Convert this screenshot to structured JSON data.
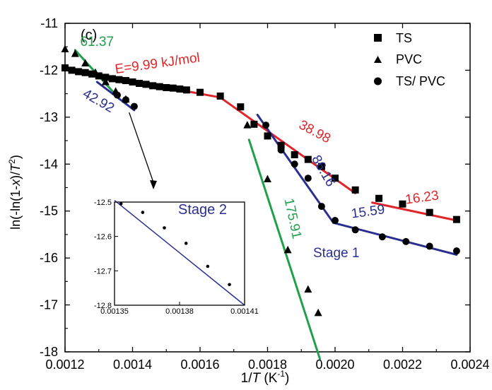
{
  "chart_data": {
    "type": "scatter",
    "panel_label": "(c)",
    "xlabel": "1/T (K⁻¹)",
    "xlabel_parts": {
      "pre": "1/",
      "italic": "T",
      "post": " (K",
      "sup": "-1",
      "close": ")"
    },
    "ylabel_parts": {
      "pre": "ln(-ln(1-",
      "italic_x": "x",
      "mid": ")/",
      "italic_T": "T",
      "sup": "2",
      "close": ")"
    },
    "xlim": [
      0.0012,
      0.0024
    ],
    "ylim": [
      -18,
      -11
    ],
    "xticks": [
      "0.0012",
      "0.0014",
      "0.0016",
      "0.0018",
      "0.0020",
      "0.0022",
      "0.0024"
    ],
    "xtick_values": [
      0.0012,
      0.0014,
      0.0016,
      0.0018,
      0.002,
      0.0022,
      0.0024
    ],
    "yticks": [
      "-11",
      "-12",
      "-13",
      "-14",
      "-15",
      "-16",
      "-17",
      "-18"
    ],
    "ytick_values": [
      -11,
      -12,
      -13,
      -14,
      -15,
      -16,
      -17,
      -18
    ],
    "legend": {
      "placement": "top-right",
      "entries": [
        {
          "name": "TS",
          "marker": "square"
        },
        {
          "name": "PVC",
          "marker": "triangle"
        },
        {
          "name": "TS/ PVC",
          "marker": "circle"
        }
      ]
    },
    "series": [
      {
        "name": "TS",
        "marker": "square",
        "x": [
          0.0012,
          0.00122,
          0.00124,
          0.00126,
          0.00128,
          0.0013,
          0.00132,
          0.00134,
          0.00136,
          0.00138,
          0.0014,
          0.00142,
          0.00144,
          0.00146,
          0.00148,
          0.0015,
          0.00152,
          0.00154,
          0.00156,
          0.0016,
          0.00166,
          0.00172,
          0.00176,
          0.0018,
          0.00184,
          0.00188,
          0.00192,
          0.00196,
          0.002,
          0.00206,
          0.00213,
          0.0022,
          0.00228,
          0.00236
        ],
        "y": [
          -11.95,
          -12.0,
          -12.03,
          -12.05,
          -12.08,
          -12.12,
          -12.15,
          -12.18,
          -12.2,
          -12.22,
          -12.25,
          -12.28,
          -12.3,
          -12.33,
          -12.35,
          -12.37,
          -12.38,
          -12.4,
          -12.42,
          -12.47,
          -12.55,
          -12.78,
          -13.15,
          -13.4,
          -13.6,
          -13.8,
          -13.9,
          -14.05,
          -14.3,
          -14.55,
          -14.73,
          -14.85,
          -15.03,
          -15.18
        ]
      },
      {
        "name": "PVC",
        "marker": "triangle",
        "x": [
          0.0012,
          0.00123,
          0.00126,
          0.00129,
          0.00132,
          0.00135,
          0.00138,
          0.00174,
          0.0018,
          0.00186,
          0.00192,
          0.00195
        ],
        "y": [
          -11.55,
          -11.65,
          -11.85,
          -12.05,
          -12.25,
          -12.45,
          -12.62,
          -13.17,
          -14.32,
          -15.83,
          -16.67,
          -17.17
        ]
      },
      {
        "name": "TS/ PVC",
        "marker": "circle",
        "x": [
          0.001355,
          0.00138,
          0.001405,
          0.001795,
          0.00184,
          0.00188,
          0.00192,
          0.00196,
          0.002,
          0.00206,
          0.00214,
          0.00221,
          0.00228,
          0.00236
        ],
        "y": [
          -12.53,
          -12.63,
          -12.77,
          -13.17,
          -13.7,
          -14.0,
          -14.3,
          -14.9,
          -15.2,
          -15.4,
          -15.55,
          -15.65,
          -15.75,
          -15.85
        ]
      }
    ],
    "fit_lines": [
      {
        "color": "#e0262a",
        "x": [
          0.0012,
          0.00166
        ],
        "y": [
          -11.97,
          -12.58
        ]
      },
      {
        "color": "#e0262a",
        "x": [
          0.00166,
          0.00206
        ],
        "y": [
          -12.58,
          -14.62
        ]
      },
      {
        "color": "#e0262a",
        "x": [
          0.00211,
          0.00236
        ],
        "y": [
          -14.82,
          -15.2
        ]
      },
      {
        "color": "#1fa04a",
        "x": [
          0.00123,
          0.00135
        ],
        "y": [
          -11.57,
          -12.52
        ]
      },
      {
        "color": "#1fa04a",
        "x": [
          0.001745,
          0.001955
        ],
        "y": [
          -13.48,
          -18.15
        ]
      },
      {
        "color": "#2a2f8f",
        "x": [
          0.001295,
          0.001405
        ],
        "y": [
          -12.25,
          -12.85
        ]
      },
      {
        "color": "#2a2f8f",
        "x": [
          0.00177,
          0.001995
        ],
        "y": [
          -12.95,
          -15.25
        ]
      },
      {
        "color": "#2a2f8f",
        "x": [
          0.001995,
          0.00236
        ],
        "y": [
          -15.25,
          -15.93
        ]
      }
    ],
    "annotations": [
      {
        "text": "E=9.99 kJ/mol",
        "color": "#e0262a",
        "x": 0.00135,
        "y": -12.07,
        "rotate": -8
      },
      {
        "text": "61.37",
        "color": "#1fa04a",
        "x": 0.001245,
        "y": -11.48,
        "rotate": 0
      },
      {
        "text": "42.92",
        "color": "#2a2f8f",
        "x": 0.00125,
        "y": -12.55,
        "rotate": 30
      },
      {
        "text": "38.98",
        "color": "#e0262a",
        "x": 0.00189,
        "y": -13.22,
        "rotate": 28
      },
      {
        "text": "86.16",
        "color": "#2a2f8f",
        "x": 0.00193,
        "y": -13.88,
        "rotate": 60
      },
      {
        "text": "175.91",
        "color": "#1fa04a",
        "x": 0.00185,
        "y": -14.75,
        "rotate": 78
      },
      {
        "text": "16.23",
        "color": "#e0262a",
        "x": 0.00221,
        "y": -14.85,
        "rotate": -8
      },
      {
        "text": "15.59",
        "color": "#2a2f8f",
        "x": 0.00205,
        "y": -15.15,
        "rotate": -8
      },
      {
        "text": "Stage 1",
        "color": "#2a2f8f",
        "x": 0.001935,
        "y": -15.98,
        "rotate": 0
      }
    ],
    "inset": {
      "label": "Stage 2",
      "xlim": [
        0.00135,
        0.00141
      ],
      "ylim": [
        -12.8,
        -12.5
      ],
      "xticks": [
        "0.00135",
        "0.00138",
        "0.00141"
      ],
      "xtick_values": [
        0.00135,
        0.00138,
        0.00141
      ],
      "yticks": [
        "-12.5",
        "-12.6",
        "-12.7",
        "-12.8"
      ],
      "ytick_values": [
        -12.5,
        -12.6,
        -12.7,
        -12.8
      ],
      "points": {
        "x": [
          0.001353,
          0.001363,
          0.001373,
          0.001383,
          0.001393,
          0.001403
        ],
        "y": [
          -12.505,
          -12.53,
          -12.575,
          -12.62,
          -12.687,
          -12.74
        ]
      },
      "fit": {
        "x": [
          0.00135,
          0.00141
        ],
        "y": [
          -12.495,
          -12.8
        ]
      }
    }
  },
  "colors": {
    "red": "#e0262a",
    "green": "#1fa04a",
    "blue": "#2a2f8f",
    "black": "#000000"
  }
}
